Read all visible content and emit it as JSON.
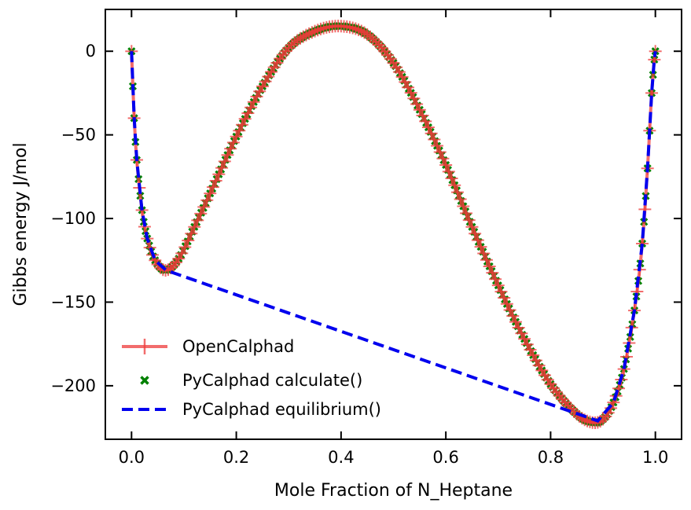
{
  "chart_data": {
    "type": "line",
    "xlabel": "Mole Fraction of N_Heptane",
    "ylabel": "Gibbs energy J/mol",
    "xlim": [
      -0.05,
      1.05
    ],
    "ylim": [
      -232,
      25
    ],
    "x_ticks": [
      0.0,
      0.2,
      0.4,
      0.6,
      0.8,
      1.0
    ],
    "x_tick_labels": [
      "0.0",
      "0.2",
      "0.4",
      "0.6",
      "0.8",
      "1.0"
    ],
    "y_ticks": [
      0,
      -50,
      -100,
      -150,
      -200
    ],
    "y_tick_labels": [
      "0",
      "−50",
      "−100",
      "−150",
      "−200"
    ],
    "legend_position": "lower-left",
    "grid": false,
    "series": [
      {
        "name": "OpenCalphad",
        "style": "line-with-plus-markers",
        "color": "#ee3b3b",
        "x": [
          0.0,
          0.005,
          0.01,
          0.02,
          0.03,
          0.045,
          0.065,
          0.09,
          0.12,
          0.15,
          0.2,
          0.25,
          0.3,
          0.35,
          0.4,
          0.45,
          0.5,
          0.55,
          0.6,
          0.65,
          0.7,
          0.75,
          0.8,
          0.85,
          0.88,
          0.9,
          0.92,
          0.94,
          0.96,
          0.975,
          0.985,
          0.993,
          0.998,
          1.0
        ],
        "y": [
          0,
          -40,
          -65,
          -95,
          -112,
          -125,
          -131,
          -124,
          -105,
          -85,
          -51,
          -21,
          2,
          12,
          15,
          10,
          -7,
          -35,
          -68,
          -105,
          -140,
          -172,
          -199,
          -217,
          -222,
          -220,
          -210,
          -190,
          -155,
          -115,
          -70,
          -25,
          -5,
          0
        ]
      },
      {
        "name": "PyCalphad calculate()",
        "style": "x-markers",
        "color": "#008000",
        "x": [
          0.0,
          0.005,
          0.01,
          0.02,
          0.03,
          0.045,
          0.065,
          0.09,
          0.12,
          0.15,
          0.2,
          0.25,
          0.3,
          0.35,
          0.4,
          0.45,
          0.5,
          0.55,
          0.6,
          0.65,
          0.7,
          0.75,
          0.8,
          0.85,
          0.88,
          0.9,
          0.92,
          0.94,
          0.96,
          0.975,
          0.985,
          0.993,
          0.998,
          1.0
        ],
        "y": [
          0,
          -40,
          -65,
          -95,
          -112,
          -125,
          -131,
          -124,
          -105,
          -85,
          -51,
          -21,
          2,
          12,
          15,
          10,
          -7,
          -35,
          -68,
          -105,
          -140,
          -172,
          -199,
          -217,
          -222,
          -220,
          -210,
          -190,
          -155,
          -115,
          -70,
          -25,
          -5,
          0
        ]
      },
      {
        "name": "PyCalphad equilibrium()",
        "style": "dashed-line",
        "color": "#0000ee",
        "x": [
          0.0,
          0.005,
          0.01,
          0.02,
          0.03,
          0.045,
          0.066,
          0.89,
          0.92,
          0.94,
          0.96,
          0.975,
          0.985,
          0.993,
          0.998,
          1.0
        ],
        "y": [
          0,
          -40,
          -65,
          -95,
          -112,
          -125,
          -131,
          -221,
          -210,
          -190,
          -155,
          -115,
          -70,
          -25,
          -5,
          0
        ]
      }
    ]
  }
}
